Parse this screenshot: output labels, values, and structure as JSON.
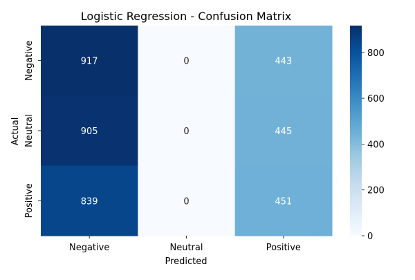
{
  "chart_data": {
    "type": "heatmap",
    "title": "Logistic Regression - Confusion Matrix",
    "xlabel": "Predicted",
    "ylabel": "Actual",
    "x_categories": [
      "Negative",
      "Neutral",
      "Positive"
    ],
    "y_categories": [
      "Negative",
      "Neutral",
      "Positive"
    ],
    "values": [
      [
        917,
        0,
        443
      ],
      [
        905,
        0,
        445
      ],
      [
        839,
        0,
        451
      ]
    ],
    "colormap": "Blues",
    "color_range": [
      0,
      917
    ],
    "colorbar_ticks": [
      "0",
      "200",
      "400",
      "600",
      "800"
    ],
    "grid": false
  }
}
